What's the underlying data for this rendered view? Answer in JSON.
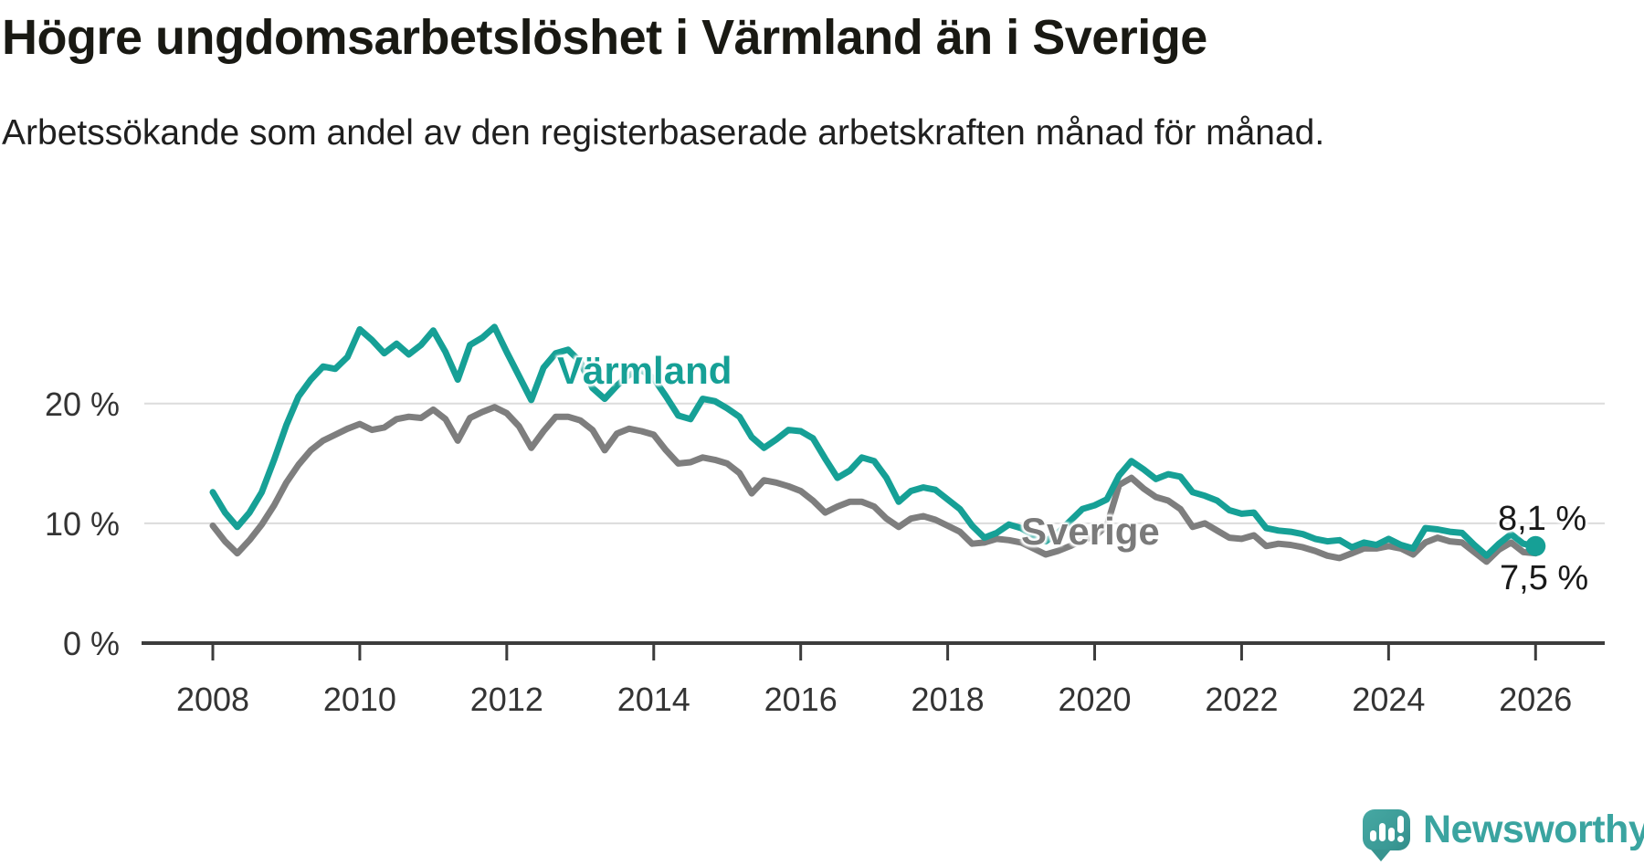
{
  "header": {
    "title": "Högre ungdomsarbetslöshet i Värmland än i Sverige",
    "subtitle": "Arbetssökande som andel av den registerbaserade arbetskraften månad för månad."
  },
  "chart_data": {
    "type": "line",
    "title": "Högre ungdomsarbetslöshet i Värmland än i Sverige",
    "xlabel": "",
    "ylabel": "",
    "grid": "horizontal-only",
    "x_start_year": 2008,
    "x_step_years": 0.1666667,
    "xlim": [
      2007.9,
      2026.2
    ],
    "ylim": [
      0,
      27.5
    ],
    "x_tick_labels": [
      "2008",
      "2010",
      "2012",
      "2014",
      "2016",
      "2018",
      "2020",
      "2022",
      "2024",
      "2026"
    ],
    "y_ticks": [
      {
        "value": 0,
        "label": "0 %"
      },
      {
        "value": 10,
        "label": "10 %"
      },
      {
        "value": 20,
        "label": "20 %"
      }
    ],
    "series": [
      {
        "name": "Värmland",
        "color": "#16A096",
        "end_label": "8,1 %",
        "end_value": 8.1,
        "values": [
          12.6,
          10.9,
          9.7,
          10.9,
          12.6,
          15.3,
          18.2,
          20.6,
          22.0,
          23.1,
          22.9,
          23.9,
          26.2,
          25.3,
          24.2,
          25.0,
          24.1,
          24.9,
          26.1,
          24.3,
          22.0,
          24.9,
          25.5,
          26.4,
          24.3,
          22.3,
          20.3,
          23.0,
          24.2,
          24.5,
          23.5,
          21.3,
          20.4,
          21.5,
          22.4,
          22.8,
          22.1,
          20.6,
          19.0,
          18.7,
          20.4,
          20.2,
          19.6,
          18.9,
          17.2,
          16.3,
          17.0,
          17.8,
          17.7,
          17.1,
          15.4,
          13.8,
          14.4,
          15.5,
          15.2,
          13.8,
          11.8,
          12.7,
          13.0,
          12.8,
          12.0,
          11.2,
          9.8,
          8.8,
          9.2,
          9.9,
          9.6,
          9.0,
          8.5,
          9.2,
          10.2,
          11.2,
          11.5,
          12.0,
          14.0,
          15.2,
          14.5,
          13.7,
          14.1,
          13.9,
          12.6,
          12.3,
          11.9,
          11.1,
          10.8,
          10.9,
          9.6,
          9.4,
          9.3,
          9.1,
          8.7,
          8.5,
          8.6,
          8.0,
          8.4,
          8.2,
          8.7,
          8.2,
          7.9,
          9.6,
          9.5,
          9.3,
          9.2,
          8.2,
          7.3,
          8.3,
          9.1,
          8.3,
          8.1
        ]
      },
      {
        "name": "Sverige",
        "color": "#7E7E7E",
        "end_label": "7,5 %",
        "end_value": 7.5,
        "values": [
          9.8,
          8.5,
          7.5,
          8.6,
          9.9,
          11.5,
          13.4,
          14.9,
          16.1,
          16.9,
          17.4,
          17.9,
          18.3,
          17.8,
          18.0,
          18.7,
          18.9,
          18.8,
          19.5,
          18.7,
          16.9,
          18.8,
          19.3,
          19.7,
          19.2,
          18.1,
          16.3,
          17.7,
          18.9,
          18.9,
          18.6,
          17.8,
          16.1,
          17.5,
          17.9,
          17.7,
          17.4,
          16.1,
          15.0,
          15.1,
          15.5,
          15.3,
          15.0,
          14.2,
          12.5,
          13.6,
          13.4,
          13.1,
          12.7,
          11.9,
          10.9,
          11.4,
          11.8,
          11.8,
          11.4,
          10.4,
          9.7,
          10.4,
          10.6,
          10.3,
          9.8,
          9.3,
          8.3,
          8.4,
          8.7,
          8.6,
          8.4,
          7.9,
          7.4,
          7.7,
          8.1,
          8.6,
          8.9,
          9.8,
          13.2,
          13.8,
          12.9,
          12.2,
          11.9,
          11.2,
          9.7,
          10.0,
          9.4,
          8.8,
          8.7,
          9.0,
          8.1,
          8.3,
          8.2,
          8.0,
          7.7,
          7.3,
          7.1,
          7.5,
          7.9,
          7.9,
          8.1,
          7.9,
          7.4,
          8.4,
          8.8,
          8.5,
          8.4,
          7.6,
          6.8,
          7.8,
          8.4,
          7.6,
          7.5
        ]
      }
    ],
    "colors": {
      "grid": "#DCDCDC",
      "axis": "#3C3C3C",
      "tick_text": "#343434"
    }
  },
  "footer": {
    "brand": "Newsworthy"
  }
}
